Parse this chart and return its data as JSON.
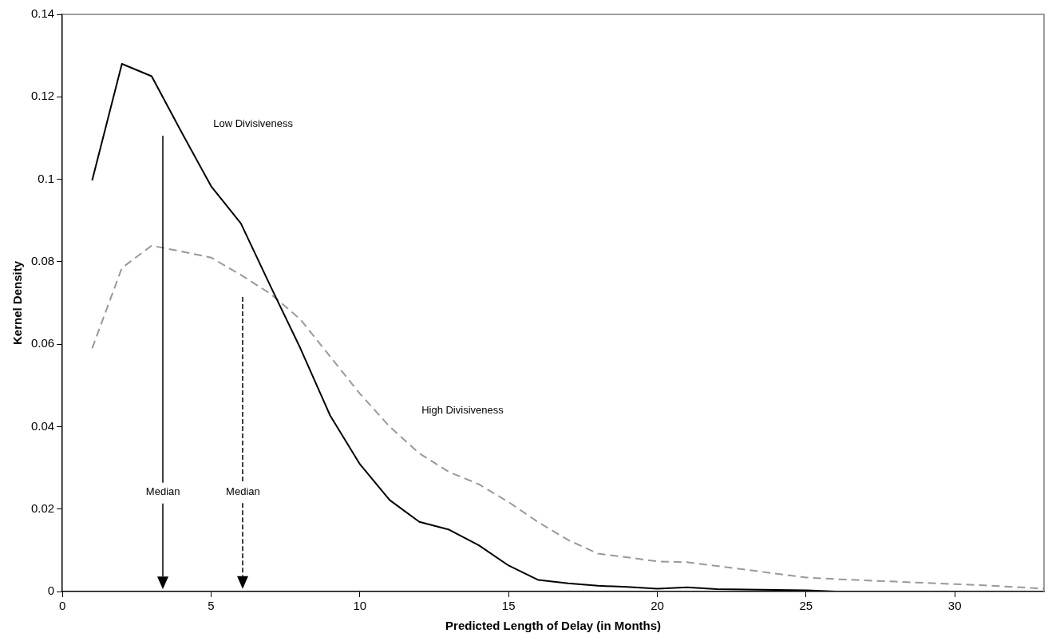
{
  "chart_data": {
    "type": "line",
    "xlabel": "Predicted Length of Delay (in Months)",
    "ylabel": "Kernel Density",
    "x": [
      1,
      2,
      3,
      4,
      5,
      6,
      7,
      8,
      9,
      10,
      11,
      12,
      13,
      14,
      15,
      16,
      17,
      18,
      19,
      20,
      21,
      22,
      23,
      24,
      25,
      26,
      27,
      28,
      29,
      30,
      31,
      32,
      33
    ],
    "series": [
      {
        "name": "Low Divisiveness",
        "color": "#000000",
        "line_style": "solid",
        "values": [
          0.0997,
          0.128,
          0.125,
          0.1115,
          0.0983,
          0.0893,
          0.074,
          0.059,
          0.0427,
          0.0309,
          0.0222,
          0.0169,
          0.015,
          0.0112,
          0.0063,
          0.0028,
          0.002,
          0.0014,
          0.0011,
          0.0007,
          0.001,
          0.0006,
          0.0005,
          0.0004,
          0.0003,
          0,
          0,
          0,
          0,
          0,
          0,
          0,
          0
        ]
      },
      {
        "name": "High Divisiveness",
        "color": "#999999",
        "line_style": "dashed",
        "values": [
          0.059,
          0.0785,
          0.0839,
          0.0825,
          0.081,
          0.0768,
          0.0722,
          0.066,
          0.057,
          0.048,
          0.04,
          0.0335,
          0.029,
          0.026,
          0.0217,
          0.0168,
          0.0125,
          0.0092,
          0.0083,
          0.0073,
          0.0071,
          0.0062,
          0.0053,
          0.0043,
          0.0034,
          0.003,
          0.0027,
          0.0024,
          0.0021,
          0.0018,
          0.0015,
          0.0011,
          0.0007
        ]
      }
    ],
    "ref_lines": [
      {
        "axis": "x",
        "value": 3.38,
        "label": "Median",
        "color": "#000000",
        "line_style": "solid"
      },
      {
        "axis": "x",
        "value": 6.07,
        "label": "Median",
        "color": "#000000",
        "line_style": "dashed"
      }
    ],
    "xlim": [
      0,
      33
    ],
    "xticks": [
      0,
      5,
      10,
      15,
      20,
      25,
      30
    ],
    "ylim": [
      0,
      0.14
    ],
    "yticks": [
      0,
      0.02,
      0.04,
      0.06,
      0.08,
      0.1,
      0.12,
      0.14
    ],
    "grid": false,
    "legend": false,
    "marker": "none"
  }
}
